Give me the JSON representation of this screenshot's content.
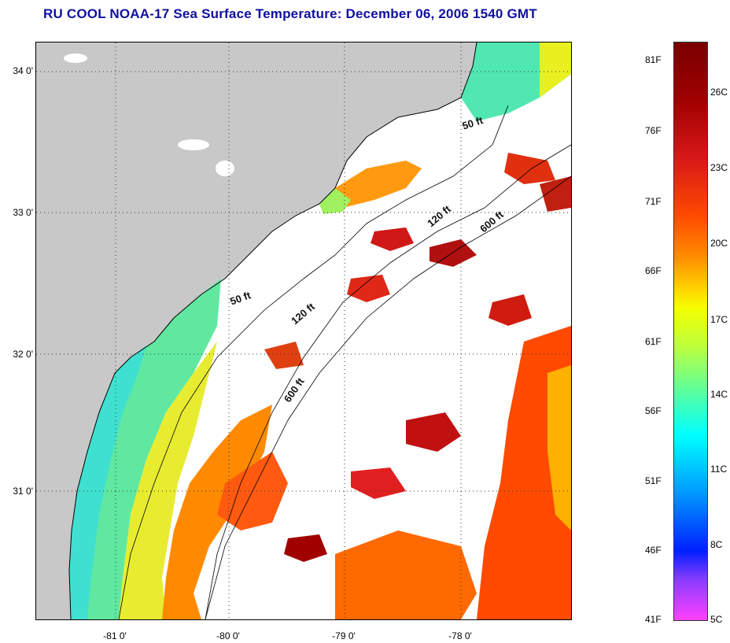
{
  "title": "RU COOL  NOAA-17  Sea Surface Temperature:  December 06, 2006 1540 GMT",
  "lat_labels": [
    "34 0'",
    "33 0'",
    "32 0'",
    "31 0'"
  ],
  "lon_labels": [
    "-81 0'",
    "-80 0'",
    "-79 0'",
    "-78 0'"
  ],
  "contour_labels": [
    "50 ft",
    "120 ft",
    "600 ft",
    "50 ft",
    "120 ft",
    "600 ft"
  ],
  "colorbar": {
    "fahrenheit": [
      "81F",
      "76F",
      "71F",
      "66F",
      "61F",
      "56F",
      "51F",
      "46F",
      "41F"
    ],
    "celsius": [
      "26C",
      "23C",
      "20C",
      "17C",
      "14C",
      "11C",
      "8C",
      "5C"
    ]
  },
  "colors": {
    "land": "#c8c8c8",
    "cloud": "#ffffff",
    "title": "#1010a0",
    "warm": "#ff4a00",
    "cold": "#00ffff"
  }
}
